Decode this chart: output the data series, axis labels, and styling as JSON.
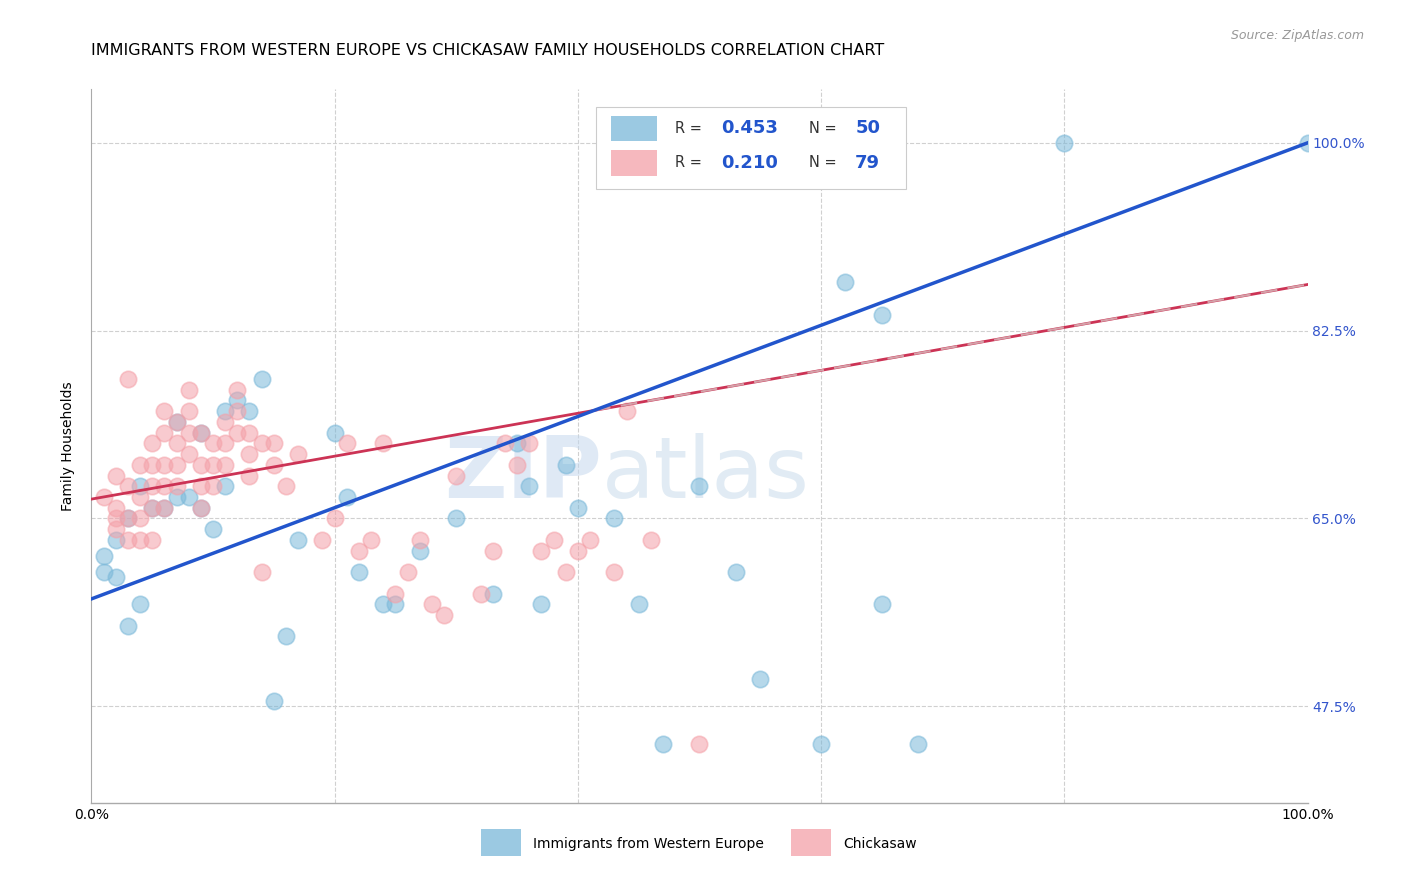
{
  "title": "IMMIGRANTS FROM WESTERN EUROPE VS CHICKASAW FAMILY HOUSEHOLDS CORRELATION CHART",
  "source": "Source: ZipAtlas.com",
  "ylabel": "Family Households",
  "blue_R": "0.453",
  "blue_N": "50",
  "pink_R": "0.210",
  "pink_N": "79",
  "blue_color": "#7ab8d9",
  "pink_color": "#f4a0a8",
  "line_blue_color": "#2255cc",
  "line_pink_color": "#cc3355",
  "line_dashed_color": "#d4a0a8",
  "grid_color": "#d0d0d0",
  "right_tick_color": "#3355cc",
  "ytick_vals": [
    0.475,
    0.65,
    0.825,
    1.0
  ],
  "ytick_labels": [
    "47.5%",
    "65.0%",
    "82.5%",
    "100.0%"
  ],
  "xlim": [
    0.0,
    1.0
  ],
  "ylim": [
    0.385,
    1.05
  ],
  "blue_intercept": 0.575,
  "blue_slope": 0.425,
  "pink_intercept": 0.668,
  "pink_slope": 0.2,
  "blue_x": [
    0.02,
    0.01,
    0.01,
    0.02,
    0.03,
    0.04,
    0.03,
    0.04,
    0.05,
    0.06,
    0.07,
    0.07,
    0.08,
    0.09,
    0.09,
    0.1,
    0.11,
    0.11,
    0.12,
    0.13,
    0.14,
    0.15,
    0.16,
    0.17,
    0.2,
    0.21,
    0.22,
    0.24,
    0.25,
    0.27,
    0.3,
    0.33,
    0.35,
    0.36,
    0.37,
    0.39,
    0.4,
    0.43,
    0.45,
    0.47,
    0.5,
    0.53,
    0.55,
    0.6,
    0.65,
    0.65,
    0.68,
    0.62,
    0.8,
    1.0
  ],
  "blue_y": [
    0.595,
    0.615,
    0.6,
    0.63,
    0.55,
    0.57,
    0.65,
    0.68,
    0.66,
    0.66,
    0.67,
    0.74,
    0.67,
    0.66,
    0.73,
    0.64,
    0.68,
    0.75,
    0.76,
    0.75,
    0.78,
    0.48,
    0.54,
    0.63,
    0.73,
    0.67,
    0.6,
    0.57,
    0.57,
    0.62,
    0.65,
    0.58,
    0.72,
    0.68,
    0.57,
    0.7,
    0.66,
    0.65,
    0.57,
    0.44,
    0.68,
    0.6,
    0.5,
    0.44,
    0.84,
    0.57,
    0.44,
    0.87,
    1.0,
    1.0
  ],
  "pink_x": [
    0.01,
    0.02,
    0.02,
    0.02,
    0.02,
    0.03,
    0.03,
    0.03,
    0.03,
    0.04,
    0.04,
    0.04,
    0.04,
    0.05,
    0.05,
    0.05,
    0.05,
    0.05,
    0.06,
    0.06,
    0.06,
    0.06,
    0.06,
    0.07,
    0.07,
    0.07,
    0.07,
    0.08,
    0.08,
    0.08,
    0.08,
    0.09,
    0.09,
    0.09,
    0.09,
    0.1,
    0.1,
    0.1,
    0.11,
    0.11,
    0.11,
    0.12,
    0.12,
    0.12,
    0.13,
    0.13,
    0.13,
    0.14,
    0.14,
    0.15,
    0.15,
    0.16,
    0.17,
    0.19,
    0.2,
    0.21,
    0.22,
    0.23,
    0.24,
    0.25,
    0.26,
    0.27,
    0.28,
    0.29,
    0.3,
    0.32,
    0.33,
    0.34,
    0.35,
    0.36,
    0.37,
    0.38,
    0.39,
    0.4,
    0.41,
    0.43,
    0.44,
    0.46,
    0.5
  ],
  "pink_y": [
    0.67,
    0.69,
    0.65,
    0.64,
    0.66,
    0.68,
    0.65,
    0.63,
    0.78,
    0.7,
    0.67,
    0.65,
    0.63,
    0.72,
    0.7,
    0.68,
    0.66,
    0.63,
    0.75,
    0.73,
    0.7,
    0.68,
    0.66,
    0.74,
    0.72,
    0.7,
    0.68,
    0.77,
    0.75,
    0.73,
    0.71,
    0.73,
    0.7,
    0.68,
    0.66,
    0.72,
    0.7,
    0.68,
    0.74,
    0.72,
    0.7,
    0.77,
    0.75,
    0.73,
    0.73,
    0.71,
    0.69,
    0.6,
    0.72,
    0.72,
    0.7,
    0.68,
    0.71,
    0.63,
    0.65,
    0.72,
    0.62,
    0.63,
    0.72,
    0.58,
    0.6,
    0.63,
    0.57,
    0.56,
    0.69,
    0.58,
    0.62,
    0.72,
    0.7,
    0.72,
    0.62,
    0.63,
    0.6,
    0.62,
    0.63,
    0.6,
    0.75,
    0.63,
    0.44
  ]
}
